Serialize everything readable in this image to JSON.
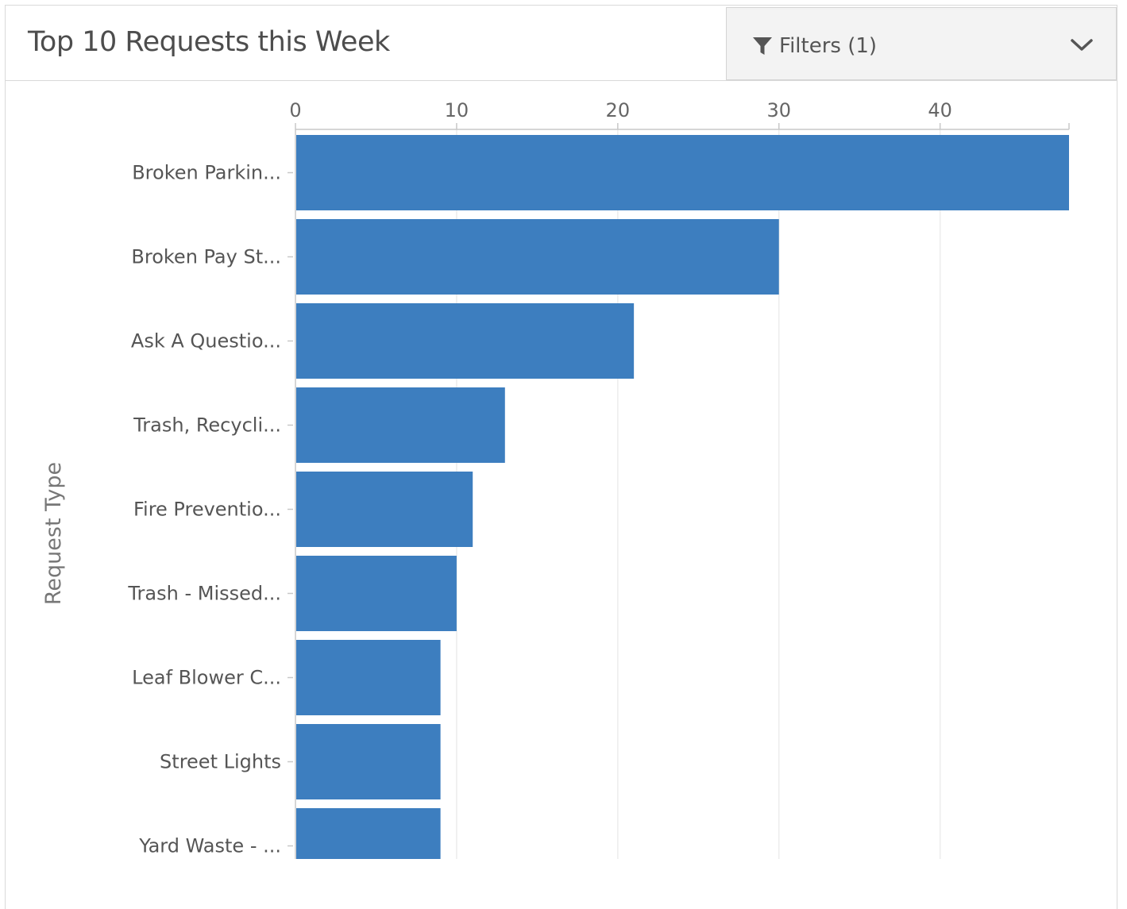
{
  "header": {
    "title": "Top 10 Requests this Week",
    "filters_label": "Filters (1)"
  },
  "icons": {
    "filter": "filter-funnel-icon",
    "dropdown": "chevron-down-icon"
  },
  "colors": {
    "bar": "#3d7ebf",
    "gridline": "#ececec",
    "axis": "#c8c8c8"
  },
  "chart_data": {
    "type": "bar",
    "orientation": "horizontal",
    "title": "Top 10 Requests this Week",
    "xlabel": "",
    "ylabel": "Request Type",
    "xlim": [
      0,
      48
    ],
    "x_ticks": [
      0,
      10,
      20,
      30,
      40
    ],
    "x_axis_position": "top",
    "grid": true,
    "categories": [
      "Broken Parkin...",
      "Broken Pay St...",
      "Ask A Questio...",
      "Trash, Recycli...",
      "Fire Preventio...",
      "Trash - Missed...",
      "Leaf Blower C...",
      "Street Lights",
      "Yard Waste - ..."
    ],
    "values": [
      48,
      30,
      21,
      13,
      11,
      10,
      9,
      9,
      9
    ]
  }
}
